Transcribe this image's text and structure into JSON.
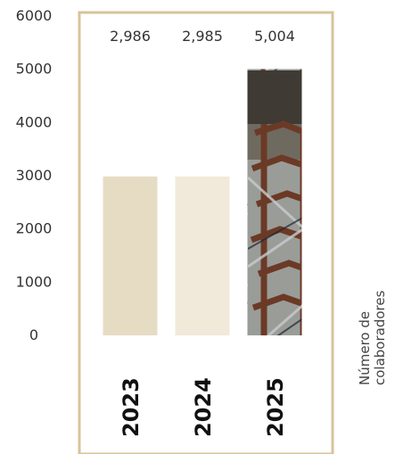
{
  "chart_data": {
    "type": "bar",
    "categories": [
      "2023",
      "2024",
      "2025"
    ],
    "values": [
      2986,
      2985,
      5004
    ],
    "data_labels": [
      "2,986",
      "2,985",
      "5,004"
    ],
    "yticks": [
      "6000",
      "5000",
      "4000",
      "3000",
      "2000",
      "1000",
      "0"
    ],
    "ylabel_lines": [
      "Número de",
      "colaboradores"
    ],
    "ylim": [
      0,
      6000
    ],
    "grid": false,
    "bar_colors": [
      "#e6dcc4",
      "#f1e9da",
      "#6b4a3a"
    ],
    "frame_color": "#d6c49a"
  }
}
